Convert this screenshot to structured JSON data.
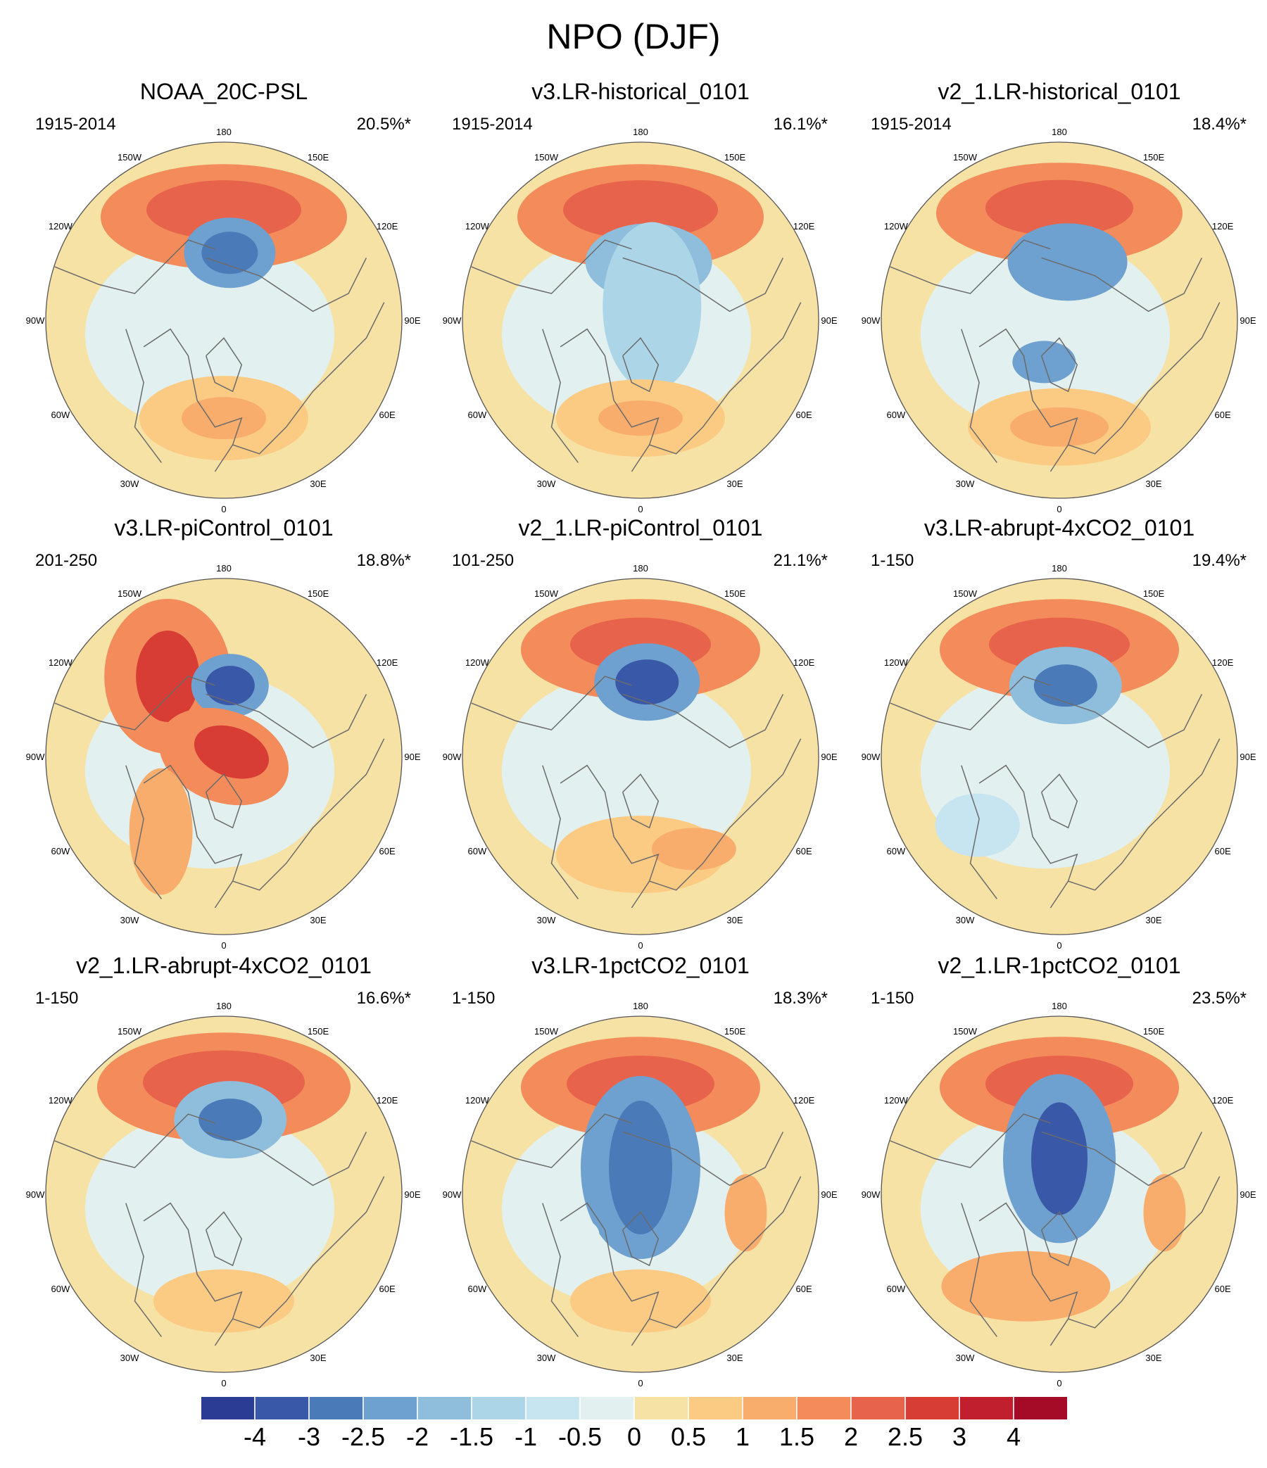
{
  "title": "NPO (DJF)",
  "chart_data": {
    "type": "contour-map",
    "projection": "north-polar-stereographic",
    "variable": "NPO sea-level-pressure pattern (DJF)",
    "longitude_labels": [
      "180",
      "150E",
      "120E",
      "90E",
      "60E",
      "30E",
      "0",
      "30W",
      "60W",
      "90W",
      "120W",
      "150W"
    ],
    "colorbar": {
      "levels": [
        -4,
        -3,
        -2.5,
        -2,
        -1.5,
        -1,
        -0.5,
        0,
        0.5,
        1,
        1.5,
        2,
        2.5,
        3,
        4
      ],
      "tick_labels": [
        "-4",
        "-3",
        "-2.5",
        "-2",
        "-1.5",
        "-1",
        "-0.5",
        "0",
        "0.5",
        "1",
        "1.5",
        "2",
        "2.5",
        "3",
        "4"
      ],
      "colors": [
        "#2b3c95",
        "#3a58a8",
        "#4b7ab8",
        "#6ea1cf",
        "#8fbedd",
        "#acd6e8",
        "#c7e5f0",
        "#e2f0ef",
        "#f7e2a6",
        "#fbcb84",
        "#f9ad6c",
        "#f38c5a",
        "#e8634b",
        "#d83d35",
        "#c21f2e",
        "#a50a27"
      ]
    },
    "panels": [
      {
        "title": "NOAA_20C-PSL",
        "period": "1915-2014",
        "variance": "20.5%*"
      },
      {
        "title": "v3.LR-historical_0101",
        "period": "1915-2014",
        "variance": "16.1%*"
      },
      {
        "title": "v2_1.LR-historical_0101",
        "period": "1915-2014",
        "variance": "18.4%*"
      },
      {
        "title": "v3.LR-piControl_0101",
        "period": "201-250",
        "variance": "18.8%*"
      },
      {
        "title": "v2_1.LR-piControl_0101",
        "period": "101-250",
        "variance": "21.1%*"
      },
      {
        "title": "v3.LR-abrupt-4xCO2_0101",
        "period": "1-150",
        "variance": "19.4%*"
      },
      {
        "title": "v2_1.LR-abrupt-4xCO2_0101",
        "period": "1-150",
        "variance": "16.6%*"
      },
      {
        "title": "v3.LR-1pctCO2_0101",
        "period": "1-150",
        "variance": "18.3%*"
      },
      {
        "title": "v2_1.LR-1pctCO2_0101",
        "period": "1-150",
        "variance": "23.5%*"
      }
    ]
  }
}
